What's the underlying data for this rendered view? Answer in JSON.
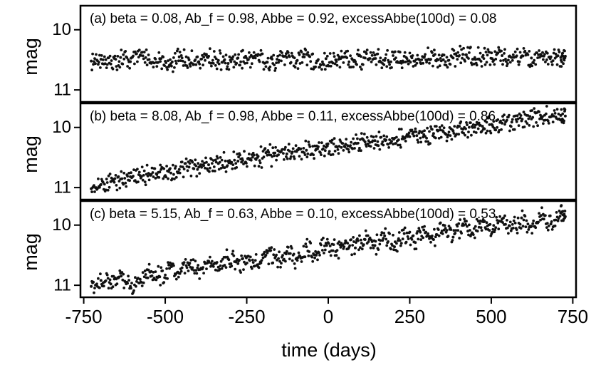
{
  "chart_data": [
    {
      "type": "scatter",
      "annotation": "(a) beta = 0.08, Ab_f = 0.98, Abbe = 0.92, excessAbbe(100d) = 0.08",
      "ylabel": "mag",
      "y_inverted": true,
      "ylim": [
        11.2,
        9.6
      ],
      "yticks": [
        "10",
        "11"
      ],
      "xlim": [
        -760,
        760
      ],
      "series": [
        {
          "x": [
            -727,
            -697,
            -667,
            -637,
            -607,
            -577,
            -547,
            -517,
            -487,
            -457,
            -427,
            -397,
            -367,
            -337,
            -307,
            -277,
            -247,
            -217,
            -187,
            -157,
            -127,
            -97,
            -67,
            -37,
            -7,
            23,
            53,
            83,
            113,
            143,
            173,
            203,
            233,
            263,
            293,
            323,
            353,
            383,
            413,
            443,
            473,
            503,
            533,
            563,
            593,
            623,
            653,
            683,
            713,
            727
          ],
          "y": [
            10.52,
            10.49,
            10.57,
            10.46,
            10.53,
            10.42,
            10.55,
            10.48,
            10.59,
            10.45,
            10.5,
            10.53,
            10.44,
            10.51,
            10.56,
            10.47,
            10.5,
            10.43,
            10.54,
            10.49,
            10.46,
            10.52,
            10.41,
            10.55,
            10.48,
            10.5,
            10.45,
            10.53,
            10.47,
            10.42,
            10.51,
            10.49,
            10.44,
            10.52,
            10.46,
            10.43,
            10.5,
            10.47,
            10.41,
            10.49,
            10.45,
            10.48,
            10.43,
            10.46,
            10.44,
            10.47,
            10.42,
            10.45,
            10.46,
            10.44
          ]
        }
      ]
    },
    {
      "type": "scatter",
      "annotation": "(b) beta = 8.08, Ab_f = 0.98, Abbe = 0.11, excessAbbe(100d) = 0.86",
      "ylabel": "mag",
      "y_inverted": true,
      "ylim": [
        11.2,
        9.6
      ],
      "yticks": [
        "10",
        "11"
      ],
      "xlim": [
        -760,
        760
      ],
      "series": [
        {
          "x": [
            -727,
            -697,
            -667,
            -637,
            -607,
            -577,
            -547,
            -517,
            -487,
            -457,
            -427,
            -397,
            -367,
            -337,
            -307,
            -277,
            -247,
            -217,
            -187,
            -157,
            -127,
            -97,
            -67,
            -37,
            -7,
            23,
            53,
            83,
            113,
            143,
            173,
            203,
            233,
            263,
            293,
            323,
            353,
            383,
            413,
            443,
            473,
            503,
            533,
            563,
            593,
            623,
            653,
            683,
            713,
            727
          ],
          "y": [
            11.02,
            10.95,
            10.9,
            10.86,
            10.82,
            10.8,
            10.78,
            10.74,
            10.7,
            10.7,
            10.66,
            10.66,
            10.62,
            10.6,
            10.56,
            10.56,
            10.52,
            10.5,
            10.46,
            10.47,
            10.44,
            10.4,
            10.38,
            10.36,
            10.33,
            10.32,
            10.28,
            10.26,
            10.24,
            10.22,
            10.2,
            10.18,
            10.17,
            10.14,
            10.12,
            10.1,
            10.07,
            10.06,
            10.03,
            10.0,
            9.98,
            9.96,
            9.93,
            9.91,
            9.89,
            9.86,
            9.83,
            9.82,
            9.8,
            9.81
          ]
        }
      ]
    },
    {
      "type": "scatter",
      "annotation": "(c) beta = 5.15, Ab_f = 0.63, Abbe = 0.10, excessAbbe(100d) = 0.53",
      "ylabel": "mag",
      "y_inverted": true,
      "xlabel": "time (days)",
      "ylim": [
        11.2,
        9.6
      ],
      "yticks": [
        "10",
        "11"
      ],
      "xlim": [
        -760,
        760
      ],
      "xticks": [
        "-750",
        "-500",
        "-250",
        "0",
        "250",
        "500",
        "750"
      ],
      "series": [
        {
          "x": [
            -727,
            -697,
            -667,
            -637,
            -607,
            -577,
            -547,
            -517,
            -487,
            -457,
            -427,
            -397,
            -367,
            -337,
            -307,
            -277,
            -247,
            -217,
            -187,
            -157,
            -127,
            -97,
            -67,
            -37,
            -7,
            23,
            53,
            83,
            113,
            143,
            173,
            203,
            233,
            263,
            293,
            323,
            353,
            383,
            413,
            443,
            473,
            503,
            533,
            563,
            593,
            623,
            653,
            683,
            713,
            727
          ],
          "y": [
            11.02,
            10.92,
            10.98,
            10.8,
            11.02,
            10.9,
            10.78,
            10.86,
            10.72,
            10.8,
            10.66,
            10.74,
            10.6,
            10.7,
            10.56,
            10.64,
            10.52,
            10.66,
            10.46,
            10.58,
            10.44,
            10.55,
            10.36,
            10.5,
            10.3,
            10.44,
            10.26,
            10.38,
            10.24,
            10.34,
            10.18,
            10.36,
            10.14,
            10.28,
            10.08,
            10.24,
            10.0,
            10.2,
            9.98,
            10.14,
            9.94,
            10.12,
            9.9,
            10.06,
            9.88,
            10.02,
            9.84,
            9.98,
            9.8,
            9.86
          ]
        }
      ]
    }
  ]
}
